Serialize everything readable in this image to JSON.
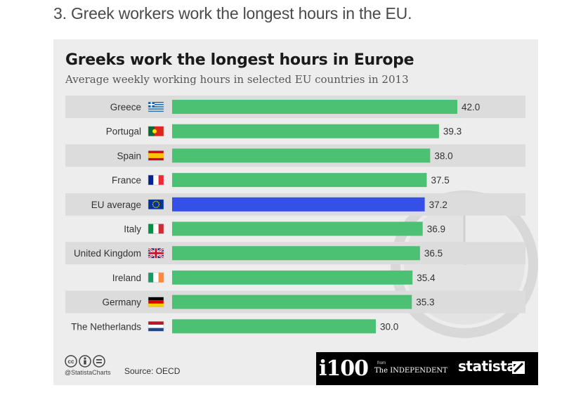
{
  "article": {
    "heading": "3. Greek workers work the longest hours in the EU."
  },
  "chart_data": {
    "type": "bar",
    "orientation": "horizontal",
    "title": "Greeks work the longest hours in Europe",
    "subtitle": "Average weekly working hours in selected EU countries in 2013",
    "categories": [
      "Greece",
      "Portugal",
      "Spain",
      "France",
      "EU average",
      "Italy",
      "United Kingdom",
      "Ireland",
      "Germany",
      "The Netherlands"
    ],
    "values": [
      42.0,
      39.3,
      38.0,
      37.5,
      37.2,
      36.9,
      36.5,
      35.4,
      35.3,
      30.0
    ],
    "value_labels": [
      "42.0",
      "39.3",
      "38.0",
      "37.5",
      "37.2",
      "36.9",
      "36.5",
      "35.4",
      "35.3",
      "30.0"
    ],
    "highlight_category": "EU average",
    "colors": {
      "bar": "#4cc173",
      "highlight": "#3550e6",
      "row_band": "#dcdcdc",
      "background": "#ededed"
    },
    "flags": [
      "greece-flag",
      "portugal-flag",
      "spain-flag",
      "france-flag",
      "eu-flag",
      "italy-flag",
      "uk-flag",
      "ireland-flag",
      "germany-flag",
      "netherlands-flag"
    ],
    "xlim": [
      0,
      42.0
    ],
    "grid": false,
    "legend": "none"
  },
  "footer": {
    "license_icons": [
      "cc-icon",
      "attribution-icon",
      "no-derivatives-icon"
    ],
    "handle": "@StatistaCharts",
    "source": "Source: OECD",
    "i100": "i100",
    "from": "from",
    "independent": "The INDEPENDENT",
    "statista": "statista"
  }
}
